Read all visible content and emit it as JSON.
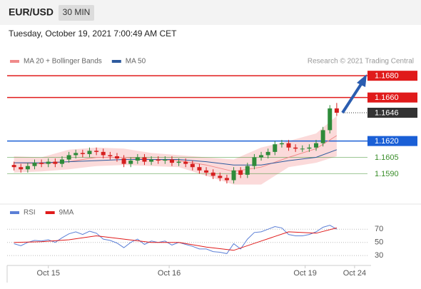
{
  "header": {
    "symbol": "EUR/USD",
    "interval": "30 MIN"
  },
  "timestamp": "Tuesday, October 19, 2021 7:00:49 AM CET",
  "chart_data": [
    {
      "type": "candlestick",
      "credit": "Research © 2021 Trading Central",
      "xlim": [
        -1,
        52
      ],
      "ylim": [
        1.1564,
        1.1707
      ],
      "up_color": "#2e8b3a",
      "down_color": "#d61f1f",
      "open": [
        1.1598,
        1.1596,
        1.1594,
        1.1597,
        1.16,
        1.1599,
        1.1601,
        1.1599,
        1.1603,
        1.1607,
        1.1609,
        1.1608,
        1.1611,
        1.161,
        1.1607,
        1.1606,
        1.1604,
        1.1599,
        1.1602,
        1.1605,
        1.1601,
        1.1603,
        1.1602,
        1.1603,
        1.16,
        1.1601,
        1.1599,
        1.1596,
        1.1593,
        1.1591,
        1.1588,
        1.1586,
        1.1584,
        1.1593,
        1.1589,
        1.1597,
        1.1605,
        1.1607,
        1.161,
        1.1617,
        1.1618,
        1.1614,
        1.1613,
        1.1613,
        1.1614,
        1.1618,
        1.163,
        1.165
      ],
      "high": [
        1.1601,
        1.1599,
        1.16,
        1.1603,
        1.1603,
        1.1604,
        1.1604,
        1.1606,
        1.161,
        1.1612,
        1.1612,
        1.1614,
        1.1614,
        1.1613,
        1.161,
        1.1609,
        1.1607,
        1.1605,
        1.1608,
        1.1608,
        1.1606,
        1.1606,
        1.1606,
        1.1606,
        1.1604,
        1.1604,
        1.1602,
        1.1599,
        1.1596,
        1.1594,
        1.1591,
        1.1589,
        1.1596,
        1.1596,
        1.16,
        1.1608,
        1.161,
        1.1613,
        1.162,
        1.1621,
        1.1621,
        1.1617,
        1.1616,
        1.1617,
        1.1621,
        1.1633,
        1.1653,
        1.1655
      ],
      "low": [
        1.1593,
        1.1591,
        1.1591,
        1.1594,
        1.1596,
        1.1596,
        1.1596,
        1.1596,
        1.16,
        1.1604,
        1.1605,
        1.1605,
        1.1607,
        1.1604,
        1.1603,
        1.1601,
        1.1596,
        1.1596,
        1.1599,
        1.1598,
        1.1598,
        1.1599,
        1.1599,
        1.1597,
        1.1597,
        1.1596,
        1.1593,
        1.159,
        1.1588,
        1.1585,
        1.1583,
        1.1581,
        1.1581,
        1.1586,
        1.1586,
        1.1594,
        1.1602,
        1.1604,
        1.1607,
        1.1614,
        1.1611,
        1.161,
        1.161,
        1.161,
        1.1611,
        1.1615,
        1.1627,
        1.1643
      ],
      "close": [
        1.1596,
        1.1594,
        1.1597,
        1.16,
        1.1599,
        1.1601,
        1.1599,
        1.1603,
        1.1607,
        1.1609,
        1.1608,
        1.1611,
        1.161,
        1.1607,
        1.1606,
        1.1604,
        1.1599,
        1.1602,
        1.1605,
        1.1601,
        1.1603,
        1.1602,
        1.1603,
        1.16,
        1.1601,
        1.1599,
        1.1596,
        1.1593,
        1.1591,
        1.1588,
        1.1586,
        1.1584,
        1.1593,
        1.1589,
        1.1597,
        1.1605,
        1.1607,
        1.161,
        1.1617,
        1.1618,
        1.1614,
        1.1613,
        1.1613,
        1.1614,
        1.1618,
        1.163,
        1.165,
        1.1646
      ],
      "series": [
        {
          "name": "MA 20 + Bollinger Bands",
          "color": "#f08a8a",
          "band_color": "#fbdada",
          "x": [
            0,
            4,
            8,
            12,
            16,
            20,
            24,
            28,
            32,
            36,
            40,
            44,
            47
          ],
          "values": [
            1.16,
            1.1599,
            1.1601,
            1.1605,
            1.1605,
            1.1603,
            1.1602,
            1.1598,
            1.1592,
            1.1596,
            1.1605,
            1.1613,
            1.1625
          ],
          "upper": [
            1.1606,
            1.1605,
            1.1612,
            1.1614,
            1.1613,
            1.1609,
            1.1607,
            1.1605,
            1.1603,
            1.1614,
            1.162,
            1.1627,
            1.1643
          ],
          "lower": [
            1.1591,
            1.1592,
            1.1594,
            1.1597,
            1.1598,
            1.1597,
            1.1596,
            1.1588,
            1.158,
            1.158,
            1.1596,
            1.16,
            1.1606
          ]
        },
        {
          "name": "MA 50",
          "color": "#2d5a9e",
          "x": [
            0,
            4,
            8,
            12,
            16,
            20,
            24,
            28,
            32,
            36,
            40,
            44,
            47
          ],
          "values": [
            1.16,
            1.16,
            1.1601,
            1.1602,
            1.1603,
            1.1603,
            1.1603,
            1.1601,
            1.1598,
            1.1598,
            1.1602,
            1.1605,
            1.1612
          ]
        }
      ],
      "levels": [
        {
          "value": 1.168,
          "label": "1.1680",
          "color": "#e01b1b",
          "boxed": true,
          "line": "full"
        },
        {
          "value": 1.166,
          "label": "1.1660",
          "color": "#e01b1b",
          "boxed": true,
          "line": "full"
        },
        {
          "value": 1.1646,
          "color": "#333333",
          "boxed": true,
          "line": "dotted"
        },
        {
          "value": 1.162,
          "label": "1.1620",
          "color": "#1a5fd6",
          "boxed": true,
          "line": "full"
        },
        {
          "value": 1.1605,
          "color": "#3a8e2a",
          "boxed": false,
          "line": "full"
        },
        {
          "value": 1.159,
          "label": "1.1590",
          "color": "#3a8e2a",
          "boxed": false,
          "line": "full"
        }
      ]
    },
    {
      "type": "line",
      "xlim": [
        -1,
        52
      ],
      "ylim": [
        15,
        93
      ],
      "yticks": [
        30,
        50,
        70
      ],
      "grid": true,
      "xticks": [
        {
          "value": 5,
          "label": "Oct 15"
        },
        {
          "value": 22.6,
          "label": "Oct 16"
        },
        {
          "value": 42.4,
          "label": "Oct 19"
        },
        {
          "value": 49.6,
          "label": "Oct 24"
        }
      ],
      "series": [
        {
          "name": "RSI",
          "color": "#5b7fd6",
          "values": [
            48,
            45,
            50,
            53,
            52,
            54,
            50,
            57,
            63,
            66,
            62,
            67,
            64,
            55,
            53,
            49,
            42,
            50,
            55,
            47,
            52,
            50,
            52,
            46,
            50,
            47,
            44,
            40,
            40,
            36,
            35,
            33,
            48,
            40,
            55,
            65,
            66,
            70,
            74,
            72,
            62,
            60,
            60,
            62,
            66,
            73,
            76,
            70
          ]
        },
        {
          "name": "9MA",
          "color": "#e01b1b",
          "x": [
            0,
            4,
            8,
            12,
            16,
            20,
            24,
            28,
            32,
            36,
            40,
            44,
            47
          ],
          "values": [
            50,
            51,
            54,
            60,
            55,
            50,
            50,
            43,
            38,
            52,
            66,
            64,
            72
          ]
        }
      ]
    }
  ]
}
